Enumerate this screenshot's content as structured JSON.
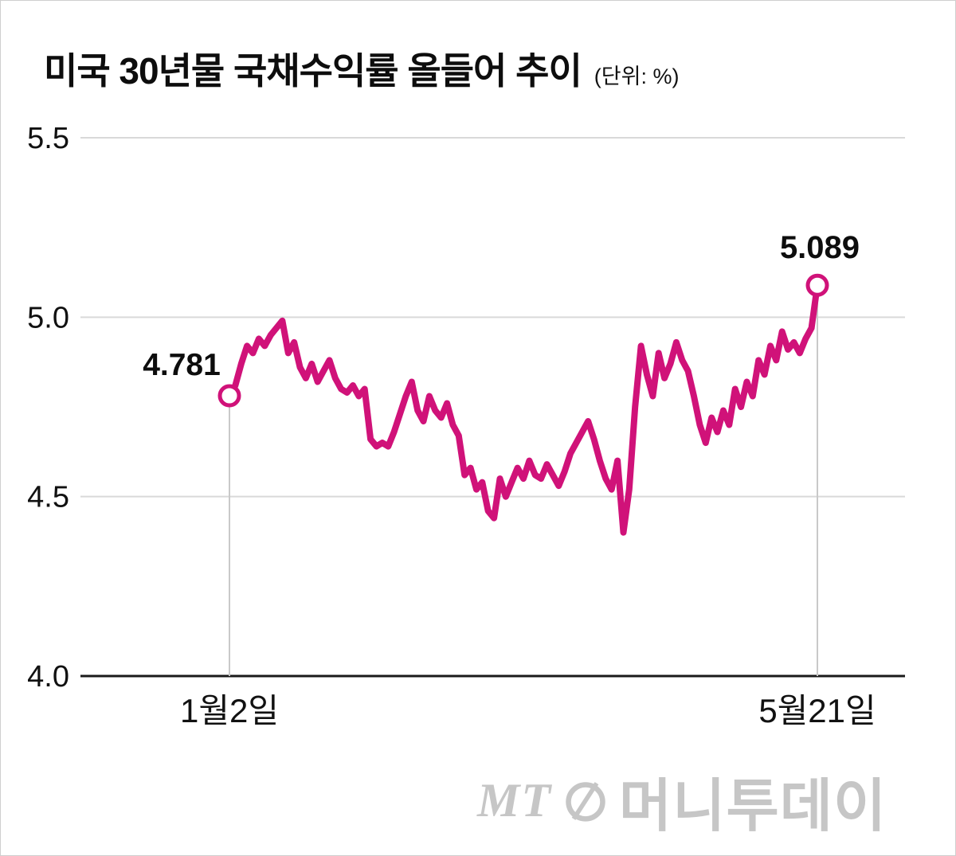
{
  "watermark": {
    "mt": "MT",
    "name": "머니투데이"
  },
  "chart_data": {
    "type": "line",
    "title": "미국 30년물 국채수익률 올들어 추이",
    "unit_label": "(단위: %)",
    "series_name": "미국 30년물 국채수익률",
    "x_tick_labels": [
      "1월2일",
      "5월21일"
    ],
    "y_ticks": [
      4.0,
      4.5,
      5.0,
      5.5
    ],
    "ylim": [
      4.0,
      5.5
    ],
    "start_label": "4.781",
    "end_label": "5.089",
    "start_value": 4.781,
    "end_value": 5.089,
    "line_color": "#d01279",
    "grid_color": "#d9d9d9",
    "axis_color": "#1a1a1a",
    "guide_color": "#c9c9c9",
    "legend": "none",
    "grid": "horizontal",
    "values": [
      4.781,
      4.81,
      4.87,
      4.92,
      4.9,
      4.94,
      4.92,
      4.95,
      4.97,
      4.99,
      4.9,
      4.93,
      4.86,
      4.83,
      4.87,
      4.82,
      4.85,
      4.88,
      4.83,
      4.8,
      4.79,
      4.81,
      4.78,
      4.8,
      4.66,
      4.64,
      4.65,
      4.64,
      4.68,
      4.73,
      4.78,
      4.82,
      4.74,
      4.71,
      4.78,
      4.74,
      4.72,
      4.76,
      4.7,
      4.67,
      4.56,
      4.58,
      4.52,
      4.54,
      4.46,
      4.44,
      4.55,
      4.5,
      4.54,
      4.58,
      4.55,
      4.6,
      4.56,
      4.55,
      4.59,
      4.56,
      4.53,
      4.57,
      4.62,
      4.65,
      4.68,
      4.71,
      4.66,
      4.6,
      4.55,
      4.52,
      4.6,
      4.4,
      4.52,
      4.75,
      4.92,
      4.84,
      4.78,
      4.9,
      4.83,
      4.87,
      4.93,
      4.88,
      4.85,
      4.78,
      4.7,
      4.65,
      4.72,
      4.68,
      4.74,
      4.7,
      4.8,
      4.75,
      4.82,
      4.78,
      4.88,
      4.84,
      4.92,
      4.88,
      4.96,
      4.91,
      4.93,
      4.9,
      4.94,
      4.97,
      5.089
    ]
  }
}
